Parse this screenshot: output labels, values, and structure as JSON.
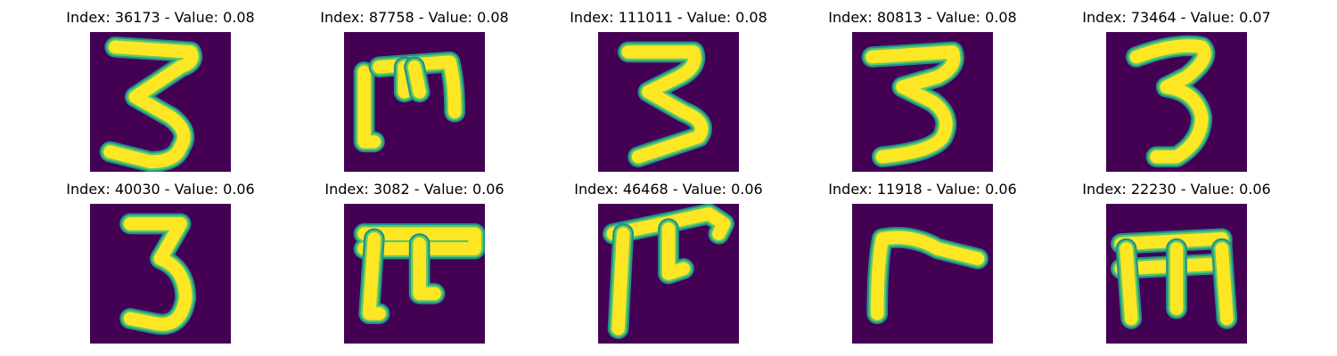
{
  "colors": {
    "background": "#440154",
    "stroke_edge": "#21918c",
    "stroke_mid": "#5ec962",
    "stroke_core": "#fde725"
  },
  "panels": [
    {
      "title": "Index: 36173 - Value: 0.08",
      "glyph": "3"
    },
    {
      "title": "Index: 87758 - Value: 0.08",
      "glyph": "m"
    },
    {
      "title": "Index: 111011 - Value: 0.08",
      "glyph": "3"
    },
    {
      "title": "Index: 80813 - Value: 0.08",
      "glyph": "3"
    },
    {
      "title": "Index: 73464 - Value: 0.07",
      "glyph": "3"
    },
    {
      "title": "Index: 40030 - Value: 0.06",
      "glyph": "3"
    },
    {
      "title": "Index: 3082 - Value: 0.06",
      "glyph": "m"
    },
    {
      "title": "Index: 46468 - Value: 0.06",
      "glyph": "m"
    },
    {
      "title": "Index: 11918 - Value: 0.06",
      "glyph": "7"
    },
    {
      "title": "Index: 22230 - Value: 0.06",
      "glyph": "m"
    }
  ]
}
